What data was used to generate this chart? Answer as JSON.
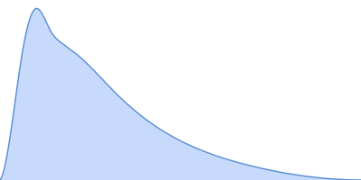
{
  "fill_color": "#c8dafc",
  "line_color": "#5a8fd4",
  "line_width": 1.0,
  "background_color": "#ffffff",
  "xlim": [
    0,
    1.0
  ],
  "ylim": [
    0,
    1.05
  ],
  "figsize": [
    4.0,
    2.0
  ],
  "dpi": 100,
  "x_ctrl": [
    0.0,
    0.02,
    0.06,
    0.1,
    0.14,
    0.17,
    0.22,
    0.3,
    0.4,
    0.55,
    0.7,
    0.82,
    1.0
  ],
  "y_ctrl": [
    0.0,
    0.15,
    0.72,
    1.0,
    0.87,
    0.8,
    0.72,
    0.55,
    0.36,
    0.18,
    0.08,
    0.03,
    0.0
  ]
}
